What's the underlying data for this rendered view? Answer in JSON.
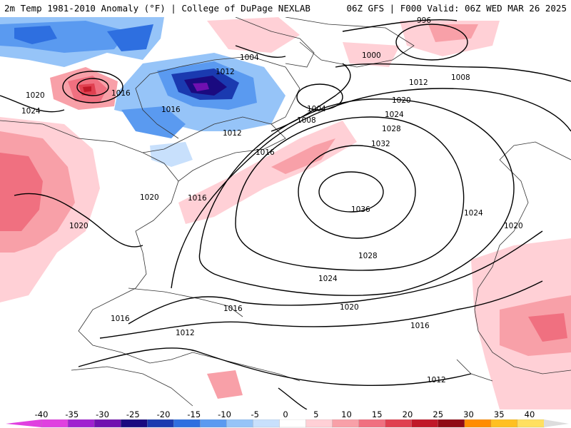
{
  "title": {
    "left": "2m Temp 1981-2010 Anomaly (°F) | College of DuPage NEXLAB",
    "right": "06Z GFS | F000 Valid: 06Z WED MAR 26 2025"
  },
  "isobar_labels": [
    "996",
    "1000",
    "1004",
    "1004",
    "1008",
    "1008",
    "1012",
    "1012",
    "1012",
    "1012",
    "1012",
    "1016",
    "1016",
    "1016",
    "1016",
    "1016",
    "1016",
    "1016",
    "1020",
    "1020",
    "1020",
    "1020",
    "1020",
    "1020",
    "1024",
    "1024",
    "1024",
    "1024",
    "1028",
    "1028",
    "1032",
    "1036"
  ],
  "colorbar": {
    "ticks": [
      "-40",
      "-35",
      "-30",
      "-25",
      "-20",
      "-15",
      "-10",
      "-5",
      "0",
      "5",
      "10",
      "15",
      "20",
      "25",
      "30",
      "35",
      "40"
    ],
    "colors": [
      "#e040e0",
      "#a020d0",
      "#7010b0",
      "#1a0a80",
      "#1a3ab0",
      "#2e6fe0",
      "#5a9af0",
      "#96c4f8",
      "#c8e0fc",
      "#ffffff",
      "#ffd0d6",
      "#f8a0a8",
      "#f07080",
      "#e04050",
      "#c01828",
      "#900a14",
      "#ff8c00",
      "#ffc020",
      "#ffe060"
    ]
  }
}
